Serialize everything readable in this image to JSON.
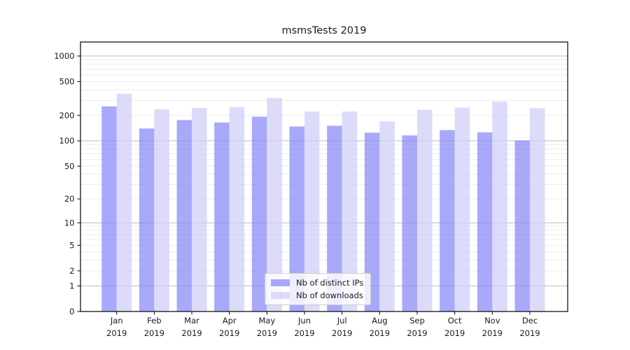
{
  "figure": {
    "title": "msmsTests 2019"
  },
  "chart_data": {
    "type": "bar",
    "title": "msmsTests 2019",
    "categories": [
      "Jan",
      "Feb",
      "Mar",
      "Apr",
      "May",
      "Jun",
      "Jul",
      "Aug",
      "Sep",
      "Oct",
      "Nov",
      "Dec"
    ],
    "category_year": "2019",
    "series": [
      {
        "name": "Nb of distinct IPs",
        "color": "#8484f8",
        "rendered_color": "#a9a9fa",
        "values": [
          255,
          140,
          176,
          165,
          193,
          148,
          151,
          125,
          116,
          134,
          126,
          101
        ]
      },
      {
        "name": "Nb of downloads",
        "color": "#cdcdf8",
        "rendered_color": "#dcdcfa",
        "values": [
          360,
          236,
          244,
          251,
          320,
          222,
          222,
          170,
          232,
          247,
          291,
          243
        ]
      }
    ],
    "bar_alpha": 0.7,
    "xlabel": "",
    "ylabel": "",
    "y_scale": "log10(value+1)",
    "y_ticks": [
      0,
      1,
      2,
      5,
      10,
      20,
      50,
      100,
      200,
      500,
      1000
    ],
    "ylim": [
      0,
      1400
    ],
    "grid": "both",
    "legend_position": "bottom-center",
    "legend_entries": [
      "Nb of distinct IPs",
      "Nb of downloads"
    ]
  },
  "colors": {
    "bar_distinct_ips_rendered": "#a9a9fa",
    "bar_downloads_rendered": "#dcdcfa",
    "grid_minor": "#ececec",
    "grid_major": "#bdbdbd",
    "axis_frame": "#000000",
    "text": "#1a1a1a",
    "legend_border": "#cccccc"
  }
}
